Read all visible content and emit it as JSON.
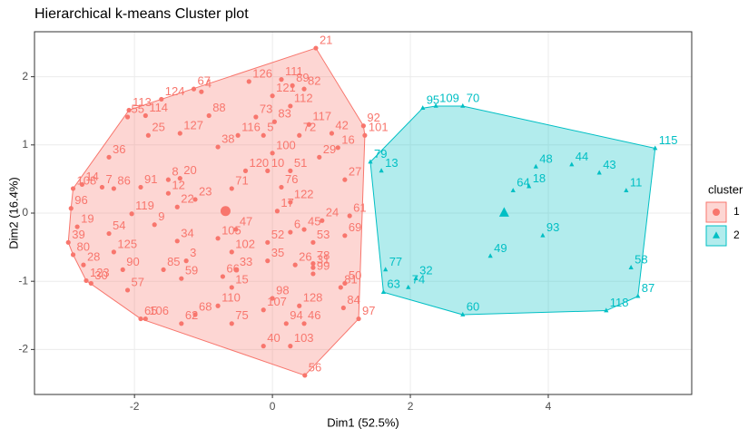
{
  "chart_data": {
    "type": "scatter",
    "title": "Hierarchical k-means Cluster plot",
    "xlabel": "Dim1 (52.5%)",
    "ylabel": "Dim2 (16.4%)",
    "xlim": [
      -3.45,
      6.08
    ],
    "ylim": [
      -2.66,
      2.66
    ],
    "xticks": [
      -2,
      0,
      2,
      4
    ],
    "yticks": [
      -2,
      -1,
      0,
      1,
      2
    ],
    "grid": true,
    "legend_title": "cluster",
    "series": [
      {
        "name": "1",
        "color": "#F8766D",
        "marker": "circle",
        "center_x": -0.68,
        "center_y": 0.03,
        "labels": [
          "21",
          "89",
          "111",
          "126",
          "67",
          "124",
          "113",
          "4",
          "121",
          "82",
          "55",
          "114",
          "88",
          "73",
          "112",
          "117",
          "92",
          "25",
          "127",
          "116",
          "5",
          "83",
          "72",
          "42",
          "101",
          "36",
          "38",
          "16",
          "29",
          "100",
          "14",
          "7",
          "91",
          "8",
          "20",
          "120",
          "10",
          "51",
          "27",
          "108",
          "86",
          "12",
          "23",
          "71",
          "76",
          "122",
          "96",
          "119",
          "22",
          "17",
          "24",
          "61",
          "19",
          "54",
          "9",
          "105",
          "47",
          "6",
          "45",
          "69",
          "39",
          "125",
          "34",
          "52",
          "80",
          "102",
          "53",
          "28",
          "90",
          "85",
          "3",
          "35",
          "26",
          "78",
          "33",
          "31",
          "59",
          "66",
          "99",
          "50",
          "123",
          "30",
          "57",
          "15",
          "98",
          "81",
          "128",
          "106",
          "110",
          "107",
          "84",
          "65",
          "68",
          "97",
          "62",
          "75",
          "94",
          "46",
          "40",
          "103",
          "56"
        ],
        "x": [
          0.63,
          0.29,
          0.13,
          -0.34,
          -1.14,
          -1.61,
          -2.08,
          -1.03,
          0,
          0.46,
          -2.1,
          -1.84,
          -0.92,
          -0.24,
          0.26,
          0.53,
          1.32,
          -1.8,
          -1.34,
          -0.5,
          -0.13,
          0.03,
          0.39,
          0.86,
          1.34,
          -2.37,
          -0.79,
          0.95,
          0.68,
          0,
          -2.76,
          -2.47,
          -1.91,
          -1.51,
          -1.34,
          -0.39,
          -0.07,
          0.26,
          1.05,
          -2.89,
          -2.3,
          -1.51,
          -1.12,
          -0.59,
          0.13,
          0.26,
          -2.92,
          -2.04,
          -1.38,
          0.07,
          0.72,
          1.12,
          -2.83,
          -2.37,
          -1.71,
          -0.79,
          -0.53,
          0.26,
          0.46,
          1.05,
          -2.96,
          -2.3,
          -1.38,
          -0.07,
          -2.89,
          -0.59,
          0.59,
          -2.74,
          -2.17,
          -1.58,
          -1.25,
          -0.07,
          0.33,
          0.59,
          -0.53,
          0.59,
          -1.32,
          -0.72,
          0.59,
          1.05,
          -2.7,
          -2.63,
          -2.1,
          -0.59,
          0,
          0.99,
          0.39,
          -1.84,
          -0.79,
          -0.13,
          1.03,
          -1.91,
          -1.12,
          1.25,
          -1.32,
          -0.59,
          0.2,
          0.46,
          -0.13,
          0.26,
          0.47
        ],
        "y": [
          2.42,
          1.87,
          1.96,
          1.93,
          1.82,
          1.67,
          1.51,
          1.78,
          1.72,
          1.82,
          1.41,
          1.43,
          1.43,
          1.41,
          1.57,
          1.3,
          1.28,
          1.14,
          1.17,
          1.14,
          1.14,
          1.34,
          1.14,
          1.17,
          1.14,
          0.82,
          0.97,
          0.96,
          0.82,
          0.88,
          0.42,
          0.38,
          0.38,
          0.49,
          0.51,
          0.62,
          0.62,
          0.62,
          0.49,
          0.36,
          0.36,
          0.29,
          0.2,
          0.36,
          0.38,
          0.16,
          0.07,
          -0.01,
          0.09,
          0.03,
          -0.11,
          -0.04,
          -0.2,
          -0.3,
          -0.17,
          -0.37,
          -0.24,
          -0.28,
          -0.24,
          -0.33,
          -0.43,
          -0.57,
          -0.41,
          -0.43,
          -0.61,
          -0.57,
          -0.43,
          -0.76,
          -0.83,
          -0.83,
          -0.7,
          -0.7,
          -0.76,
          -0.74,
          -0.83,
          -0.8,
          -0.96,
          -0.93,
          -0.89,
          -1.03,
          -0.99,
          -1.03,
          -1.13,
          -1.09,
          -1.25,
          -1.09,
          -1.36,
          -1.55,
          -1.36,
          -1.42,
          -1.39,
          -1.55,
          -1.49,
          -1.55,
          -1.62,
          -1.62,
          -1.62,
          -1.62,
          -1.95,
          -1.95,
          -2.38
        ]
      },
      {
        "name": "2",
        "color": "#00BFC4",
        "marker": "triangle",
        "center_x": 3.36,
        "center_y": 0,
        "labels": [
          "109",
          "95",
          "70",
          "79",
          "13",
          "48",
          "44",
          "115",
          "18",
          "43",
          "64",
          "11",
          "93",
          "49",
          "77",
          "32",
          "58",
          "87",
          "63",
          "74",
          "60",
          "118"
        ],
        "x": [
          2.37,
          2.18,
          2.76,
          1.42,
          1.58,
          3.82,
          4.34,
          5.55,
          3.72,
          4.74,
          3.49,
          5.13,
          3.92,
          3.16,
          1.64,
          2.08,
          5.2,
          5.3,
          1.61,
          1.97,
          2.76,
          4.84
        ],
        "y": [
          1.57,
          1.54,
          1.57,
          0.75,
          0.62,
          0.68,
          0.71,
          0.95,
          0.39,
          0.59,
          0.33,
          0.33,
          -0.33,
          -0.63,
          -0.83,
          -0.96,
          -0.8,
          -1.22,
          -1.16,
          -1.09,
          -1.49,
          -1.43
        ]
      }
    ]
  }
}
